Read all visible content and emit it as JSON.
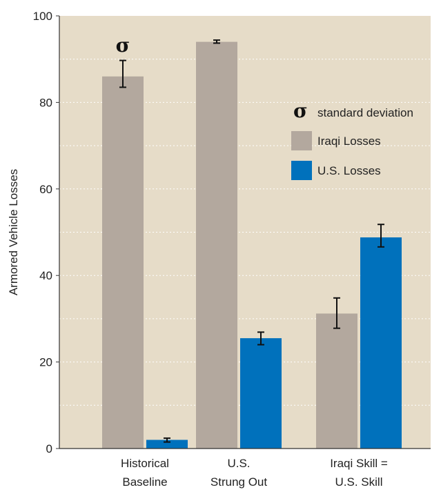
{
  "chart_data": {
    "type": "bar",
    "title": "",
    "xlabel": "",
    "ylabel": "Armored Vehicle Losses",
    "ylim": [
      0,
      100
    ],
    "yticks": [
      0,
      20,
      40,
      60,
      80,
      100
    ],
    "grid": true,
    "categories": [
      [
        "Historical",
        "Baseline"
      ],
      [
        "U.S.",
        "Strung Out"
      ],
      [
        "Iraqi Skill =",
        "U.S. Skill"
      ]
    ],
    "series": [
      {
        "name": "Iraqi Losses",
        "color": "#b3a89e",
        "values": [
          86,
          94,
          31.2
        ],
        "error_low": [
          83.5,
          93.7,
          27.8
        ],
        "error_high": [
          89.7,
          94.4,
          34.8
        ]
      },
      {
        "name": "U.S. Losses",
        "color": "#0071bc",
        "values": [
          2.0,
          25.5,
          48.8
        ],
        "error_low": [
          1.5,
          24.0,
          46.6
        ],
        "error_high": [
          2.4,
          26.9,
          51.8
        ]
      }
    ],
    "legend": {
      "placement": "right",
      "sigma_symbol": "σ",
      "sigma_label": "standard deviation"
    },
    "annotation_symbol": "σ",
    "colors": {
      "plot_background": "#e6dcc8",
      "gridline": "#ffffff",
      "axis": "#333333"
    }
  }
}
